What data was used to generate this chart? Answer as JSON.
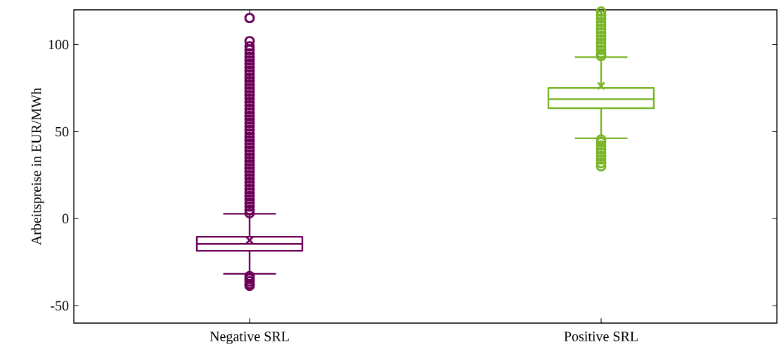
{
  "chart_data": {
    "type": "box",
    "ylabel": "Arbeitspreise in EUR/MWh",
    "categories": [
      "Negative SRL",
      "Positive SRL"
    ],
    "colors": [
      "#6b0058",
      "#7ab527"
    ],
    "boxes": [
      {
        "low": -31.7,
        "q1": -18.5,
        "median": -14.5,
        "q3": -10.4,
        "high": 2.8,
        "mean": -12.4,
        "outliers": [
          115.3,
          102,
          99,
          97,
          95,
          93,
          91,
          89,
          87,
          85,
          83,
          81,
          79,
          77,
          75,
          73,
          71,
          69,
          67,
          65,
          63,
          61,
          59,
          57,
          55,
          53,
          51,
          49,
          47,
          45,
          43,
          41,
          39,
          37,
          35,
          33,
          31,
          29,
          27,
          25,
          23,
          21,
          19,
          17,
          15,
          13,
          11,
          9,
          7,
          5,
          3.2,
          -33,
          -34.5,
          -36,
          -37.5,
          -38.5
        ]
      },
      {
        "low": 46.2,
        "q1": 63.5,
        "median": 68.7,
        "q3": 75.1,
        "high": 92.8,
        "mean": 76.3,
        "outliers": [
          93.5,
          95,
          97,
          99,
          101,
          103,
          105,
          107,
          109,
          111,
          113,
          115,
          117,
          119,
          45.5,
          44,
          42,
          40,
          38,
          36,
          34,
          32,
          30.1
        ]
      }
    ],
    "ylim": [
      -60,
      120
    ],
    "yticks": [
      -50,
      0,
      50,
      100
    ],
    "marker": "circle"
  }
}
